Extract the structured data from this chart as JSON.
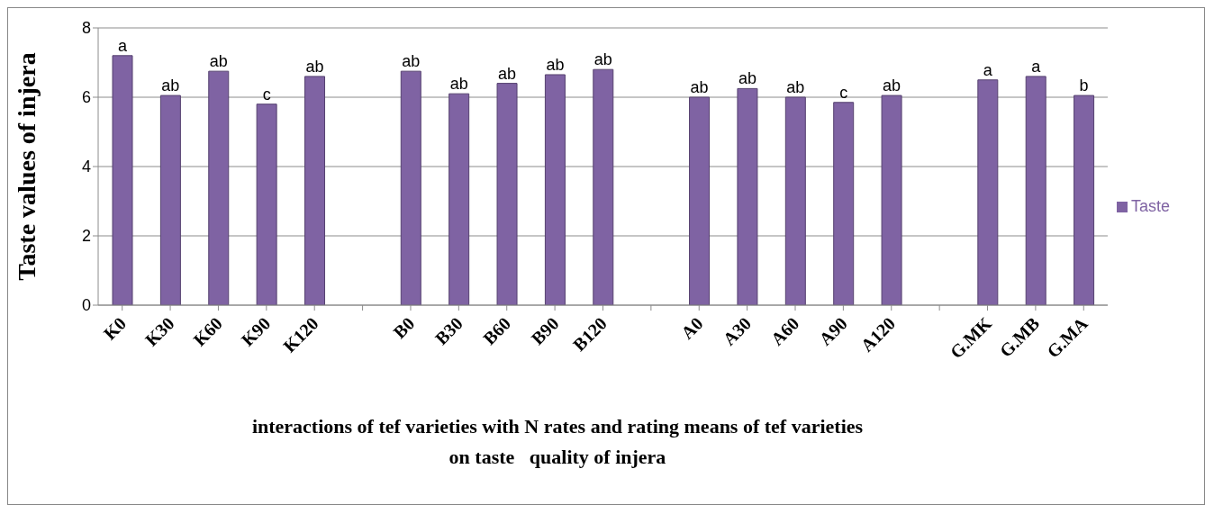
{
  "chart_data": {
    "type": "bar",
    "categories": [
      "K0",
      "K30",
      "K60",
      "K90",
      "K120",
      null,
      "B0",
      "B30",
      "B60",
      "B90",
      "B120",
      null,
      "A0",
      "A30",
      "A60",
      "A90",
      "A120",
      null,
      "G.MK",
      "G.MB",
      "G.MA"
    ],
    "series": [
      {
        "name": "Taste",
        "color": "#7f63a3",
        "values": [
          7.2,
          6.05,
          6.75,
          5.8,
          6.6,
          null,
          6.75,
          6.1,
          6.4,
          6.65,
          6.8,
          null,
          6.0,
          6.25,
          6.0,
          5.85,
          6.05,
          null,
          6.5,
          6.6,
          6.05
        ],
        "value_labels": [
          "a",
          "ab",
          "ab",
          "c",
          "ab",
          null,
          "ab",
          "ab",
          "ab",
          "ab",
          "ab",
          null,
          "ab",
          "ab",
          "ab",
          "c",
          "ab",
          null,
          "a",
          "a",
          "b"
        ]
      }
    ],
    "ylabel": "Taste values of injera",
    "xlabel": "interactions of tef varieties with N rates and rating means of tef varieties on taste   quality of injera",
    "ylim": [
      0,
      8
    ],
    "yticks": [
      0,
      2,
      4,
      6,
      8
    ],
    "grid": "y",
    "legend": "right"
  }
}
